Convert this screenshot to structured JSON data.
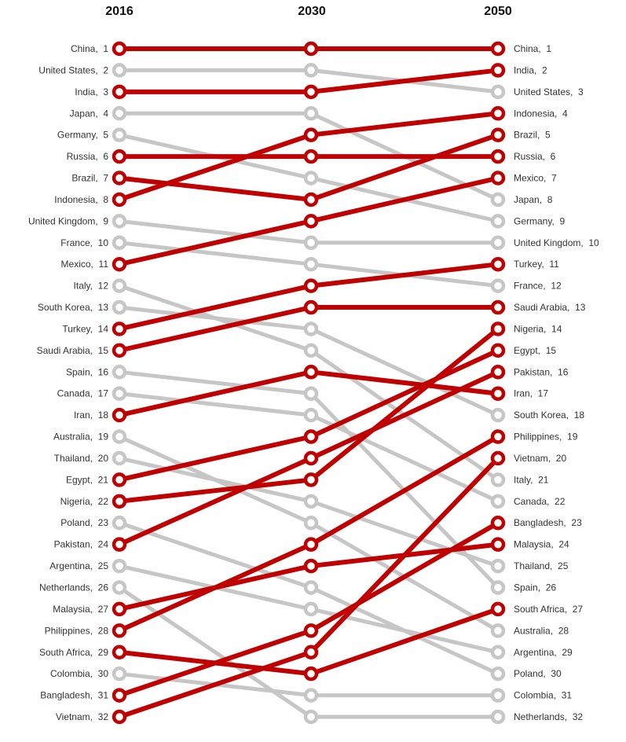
{
  "chart_data": {
    "type": "line",
    "subtype": "bump-rank-chart",
    "columns": [
      "2016",
      "2030",
      "2050"
    ],
    "rank_range": [
      1,
      32
    ],
    "highlight_color": "#c00000",
    "muted_color": "#c6c6c6",
    "label_color": "#333333",
    "header_color": "#111111",
    "legend_position": "none",
    "grid": false,
    "series": [
      {
        "name": "China",
        "ranks": [
          1,
          1,
          1
        ],
        "highlight": true
      },
      {
        "name": "United States",
        "ranks": [
          2,
          2,
          3
        ],
        "highlight": false
      },
      {
        "name": "India",
        "ranks": [
          3,
          3,
          2
        ],
        "highlight": true
      },
      {
        "name": "Japan",
        "ranks": [
          4,
          4,
          8
        ],
        "highlight": false
      },
      {
        "name": "Germany",
        "ranks": [
          5,
          7,
          9
        ],
        "highlight": false
      },
      {
        "name": "Russia",
        "ranks": [
          6,
          6,
          6
        ],
        "highlight": true
      },
      {
        "name": "Brazil",
        "ranks": [
          7,
          8,
          5
        ],
        "highlight": true
      },
      {
        "name": "Indonesia",
        "ranks": [
          8,
          5,
          4
        ],
        "highlight": true
      },
      {
        "name": "United Kingdom",
        "ranks": [
          9,
          10,
          10
        ],
        "highlight": false
      },
      {
        "name": "France",
        "ranks": [
          10,
          11,
          12
        ],
        "highlight": false
      },
      {
        "name": "Mexico",
        "ranks": [
          11,
          9,
          7
        ],
        "highlight": true
      },
      {
        "name": "Italy",
        "ranks": [
          12,
          15,
          21
        ],
        "highlight": false
      },
      {
        "name": "South Korea",
        "ranks": [
          13,
          14,
          18
        ],
        "highlight": false
      },
      {
        "name": "Turkey",
        "ranks": [
          14,
          12,
          11
        ],
        "highlight": true
      },
      {
        "name": "Saudi Arabia",
        "ranks": [
          15,
          13,
          13
        ],
        "highlight": true
      },
      {
        "name": "Spain",
        "ranks": [
          16,
          17,
          26
        ],
        "highlight": false
      },
      {
        "name": "Canada",
        "ranks": [
          17,
          18,
          22
        ],
        "highlight": false
      },
      {
        "name": "Iran",
        "ranks": [
          18,
          16,
          17
        ],
        "highlight": true
      },
      {
        "name": "Australia",
        "ranks": [
          19,
          23,
          28
        ],
        "highlight": false
      },
      {
        "name": "Thailand",
        "ranks": [
          20,
          22,
          25
        ],
        "highlight": false
      },
      {
        "name": "Egypt",
        "ranks": [
          21,
          19,
          15
        ],
        "highlight": true
      },
      {
        "name": "Nigeria",
        "ranks": [
          22,
          21,
          14
        ],
        "highlight": true
      },
      {
        "name": "Poland",
        "ranks": [
          23,
          26,
          30
        ],
        "highlight": false
      },
      {
        "name": "Pakistan",
        "ranks": [
          24,
          20,
          16
        ],
        "highlight": true
      },
      {
        "name": "Argentina",
        "ranks": [
          25,
          27,
          29
        ],
        "highlight": false
      },
      {
        "name": "Netherlands",
        "ranks": [
          26,
          32,
          32
        ],
        "highlight": false
      },
      {
        "name": "Malaysia",
        "ranks": [
          27,
          25,
          24
        ],
        "highlight": true
      },
      {
        "name": "Philippines",
        "ranks": [
          28,
          24,
          19
        ],
        "highlight": true
      },
      {
        "name": "South Africa",
        "ranks": [
          29,
          30,
          27
        ],
        "highlight": true
      },
      {
        "name": "Colombia",
        "ranks": [
          30,
          31,
          31
        ],
        "highlight": false
      },
      {
        "name": "Bangladesh",
        "ranks": [
          31,
          28,
          23
        ],
        "highlight": true
      },
      {
        "name": "Vietnam",
        "ranks": [
          32,
          29,
          20
        ],
        "highlight": true
      }
    ]
  }
}
